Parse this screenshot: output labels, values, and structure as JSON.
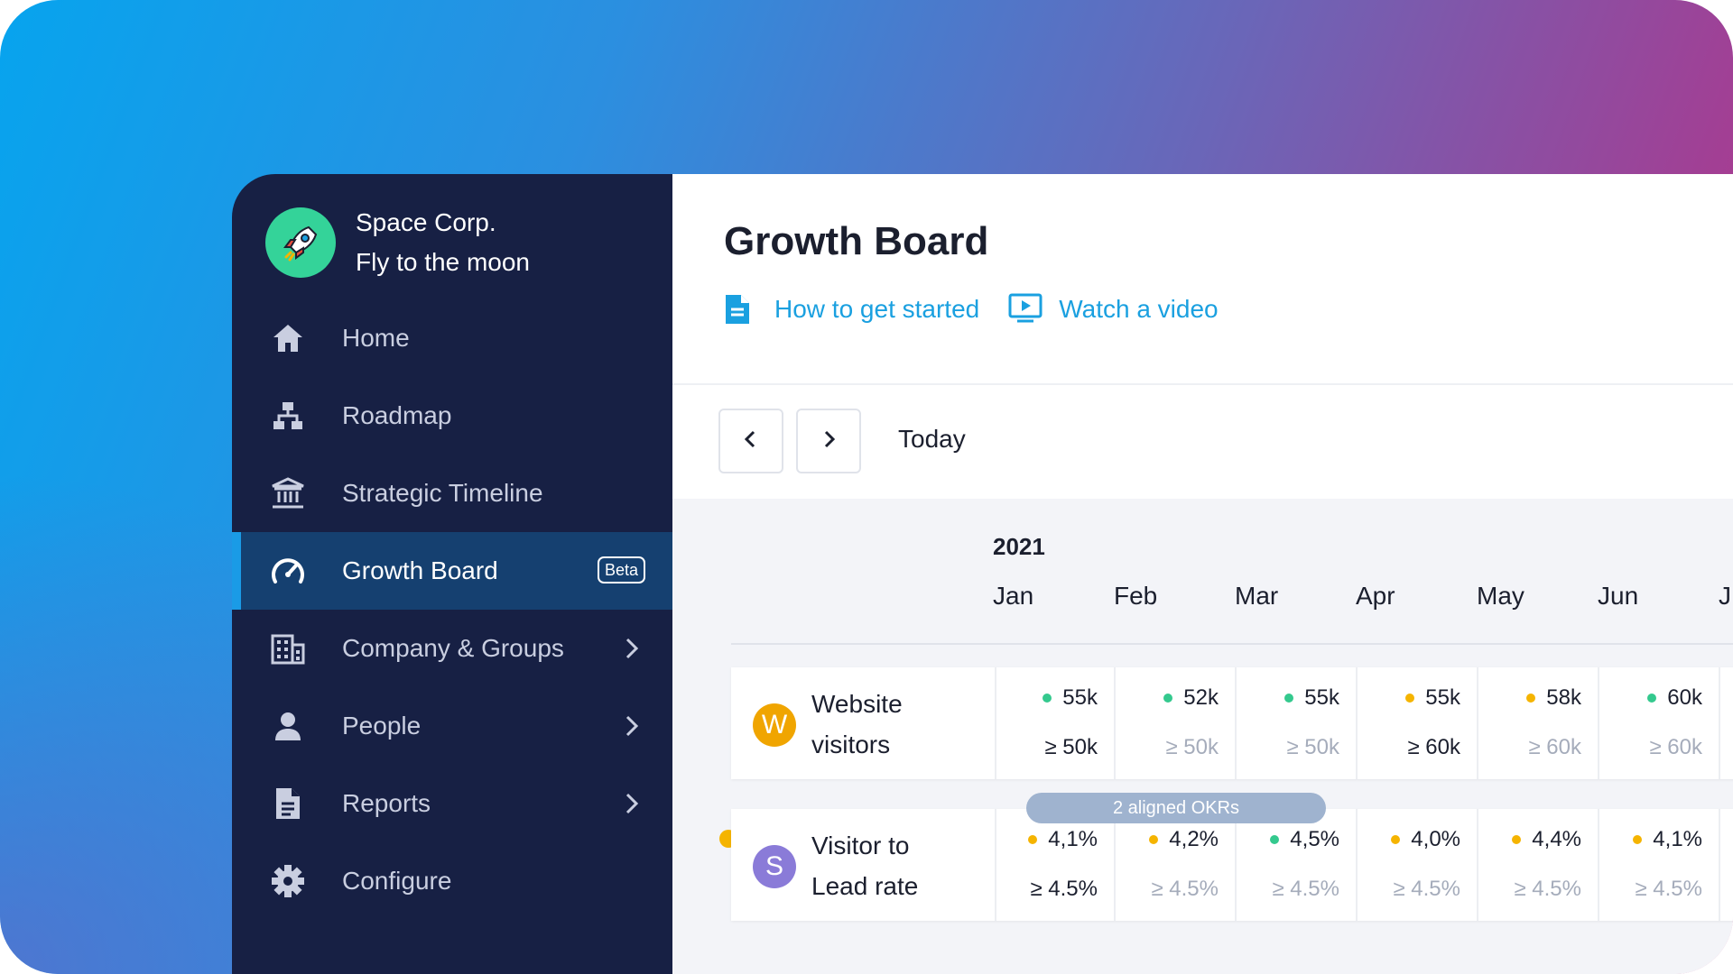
{
  "brand": {
    "name": "Space Corp.",
    "tagline": "Fly to the moon",
    "logo_icon": "rocket-icon",
    "logo_color": "#34d399"
  },
  "sidebar": {
    "items": [
      {
        "label": "Home",
        "icon": "home-icon"
      },
      {
        "label": "Roadmap",
        "icon": "sitemap-icon"
      },
      {
        "label": "Strategic Timeline",
        "icon": "institution-icon"
      },
      {
        "label": "Growth Board",
        "icon": "speedometer-icon",
        "active": true,
        "badge": "Beta"
      },
      {
        "label": "Company & Groups",
        "icon": "building-icon",
        "chevron": true
      },
      {
        "label": "People",
        "icon": "person-icon",
        "chevron": true
      },
      {
        "label": "Reports",
        "icon": "document-icon",
        "chevron": true
      },
      {
        "label": "Configure",
        "icon": "gear-icon"
      }
    ]
  },
  "main": {
    "title": "Growth Board",
    "links": [
      {
        "label": "How to get started",
        "icon": "document-icon"
      },
      {
        "label": "Watch a video",
        "icon": "video-icon"
      }
    ],
    "toolbar": {
      "prev_icon": "chevron-left-icon",
      "next_icon": "chevron-right-icon",
      "today_label": "Today"
    },
    "board": {
      "year": "2021",
      "months": [
        "Jan",
        "Feb",
        "Mar",
        "Apr",
        "May",
        "Jun",
        "J"
      ],
      "aligned_okrs": "2 aligned OKRs",
      "metrics": [
        {
          "avatar": "W",
          "avatar_color": "#f0a500",
          "name_line1": "Website",
          "name_line2": "visitors",
          "cells": [
            {
              "value": "55k",
              "status": "green",
              "target": "≥ 50k",
              "target_muted": false
            },
            {
              "value": "52k",
              "status": "green",
              "target": "≥ 50k",
              "target_muted": true
            },
            {
              "value": "55k",
              "status": "green",
              "target": "≥ 50k",
              "target_muted": true
            },
            {
              "value": "55k",
              "status": "yellow",
              "target": "≥ 60k",
              "target_muted": false
            },
            {
              "value": "58k",
              "status": "yellow",
              "target": "≥ 60k",
              "target_muted": true
            },
            {
              "value": "60k",
              "status": "green",
              "target": "≥ 60k",
              "target_muted": true
            }
          ]
        },
        {
          "avatar": "S",
          "avatar_color": "#8a7bd8",
          "name_line1": "Visitor to",
          "name_line2": "Lead rate",
          "cells": [
            {
              "value": "4,1%",
              "status": "yellow",
              "target": "≥ 4.5%",
              "target_muted": false
            },
            {
              "value": "4,2%",
              "status": "yellow",
              "target": "≥ 4.5%",
              "target_muted": true
            },
            {
              "value": "4,5%",
              "status": "green",
              "target": "≥ 4.5%",
              "target_muted": true
            },
            {
              "value": "4,0%",
              "status": "yellow",
              "target": "≥ 4.5%",
              "target_muted": true
            },
            {
              "value": "4,4%",
              "status": "yellow",
              "target": "≥ 4.5%",
              "target_muted": true
            },
            {
              "value": "4,1%",
              "status": "yellow",
              "target": "≥ 4.5%",
              "target_muted": true
            }
          ]
        }
      ]
    }
  },
  "colors": {
    "status_green": "#34c98e",
    "status_yellow": "#f5b400",
    "accent": "#1a9be6",
    "sidebar_bg": "#172044"
  }
}
